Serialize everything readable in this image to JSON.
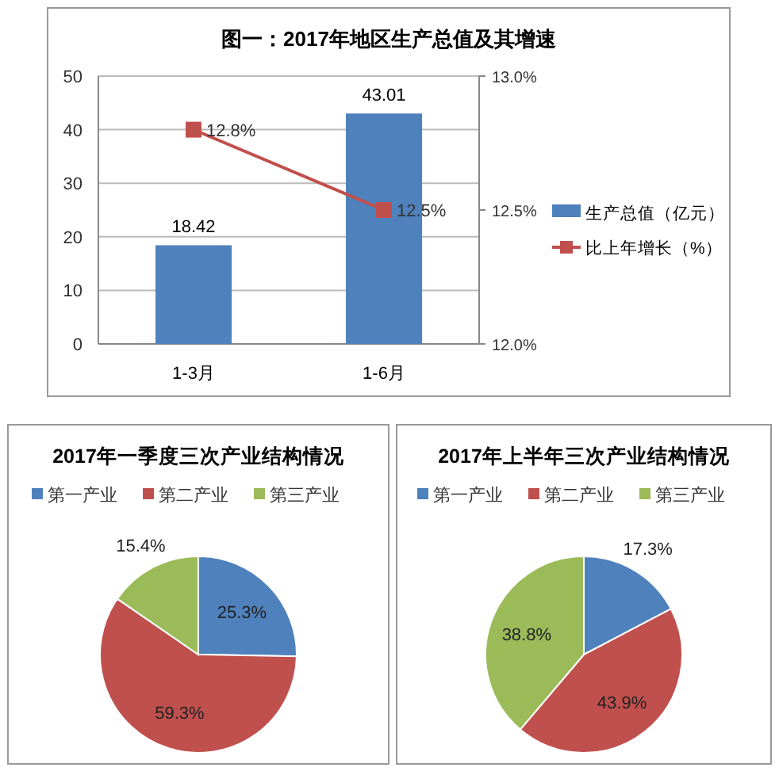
{
  "chart_data": [
    {
      "type": "bar",
      "title": "图一：2017年地区生产总值及其增速",
      "categories": [
        "1-3月",
        "1-6月"
      ],
      "series": [
        {
          "name": "生产总值（亿元）",
          "type": "bar",
          "color": "#4f81bd",
          "values": [
            18.42,
            43.01
          ],
          "value_labels": [
            "18.42",
            "43.01"
          ]
        },
        {
          "name": "比上年增长（%）",
          "type": "line",
          "axis": "y2",
          "color": "#c0504d",
          "values": [
            12.8,
            12.5
          ],
          "value_labels": [
            "12.8%",
            "12.5%"
          ],
          "marker": "square"
        }
      ],
      "ylim": [
        0,
        50
      ],
      "yticks": [
        0,
        10,
        20,
        30,
        40,
        50
      ],
      "y2lim": [
        12,
        13
      ],
      "y2ticks": [
        {
          "value": 12,
          "label": "12.0%"
        },
        {
          "value": 12.5,
          "label": "12.5%"
        },
        {
          "value": 13,
          "label": "13.0%"
        }
      ],
      "grid": "y",
      "legend": "right"
    },
    {
      "type": "pie",
      "title": "2017年一季度三次产业结构情况",
      "categories": [
        "第一产业",
        "第二产业",
        "第三产业"
      ],
      "values": [
        25.3,
        59.3,
        15.4
      ],
      "colors": [
        "#4f81bd",
        "#c0504d",
        "#9bbb59"
      ],
      "value_labels": [
        "25.3%",
        "59.3%",
        "15.4%"
      ],
      "legend": "top"
    },
    {
      "type": "pie",
      "title": "2017年上半年三次产业结构情况",
      "categories": [
        "第一产业",
        "第二产业",
        "第三产业"
      ],
      "values": [
        17.3,
        43.9,
        38.8
      ],
      "colors": [
        "#4f81bd",
        "#c0504d",
        "#9bbb59"
      ],
      "value_labels": [
        "17.3%",
        "43.9%",
        "38.8%"
      ],
      "legend": "top"
    }
  ]
}
